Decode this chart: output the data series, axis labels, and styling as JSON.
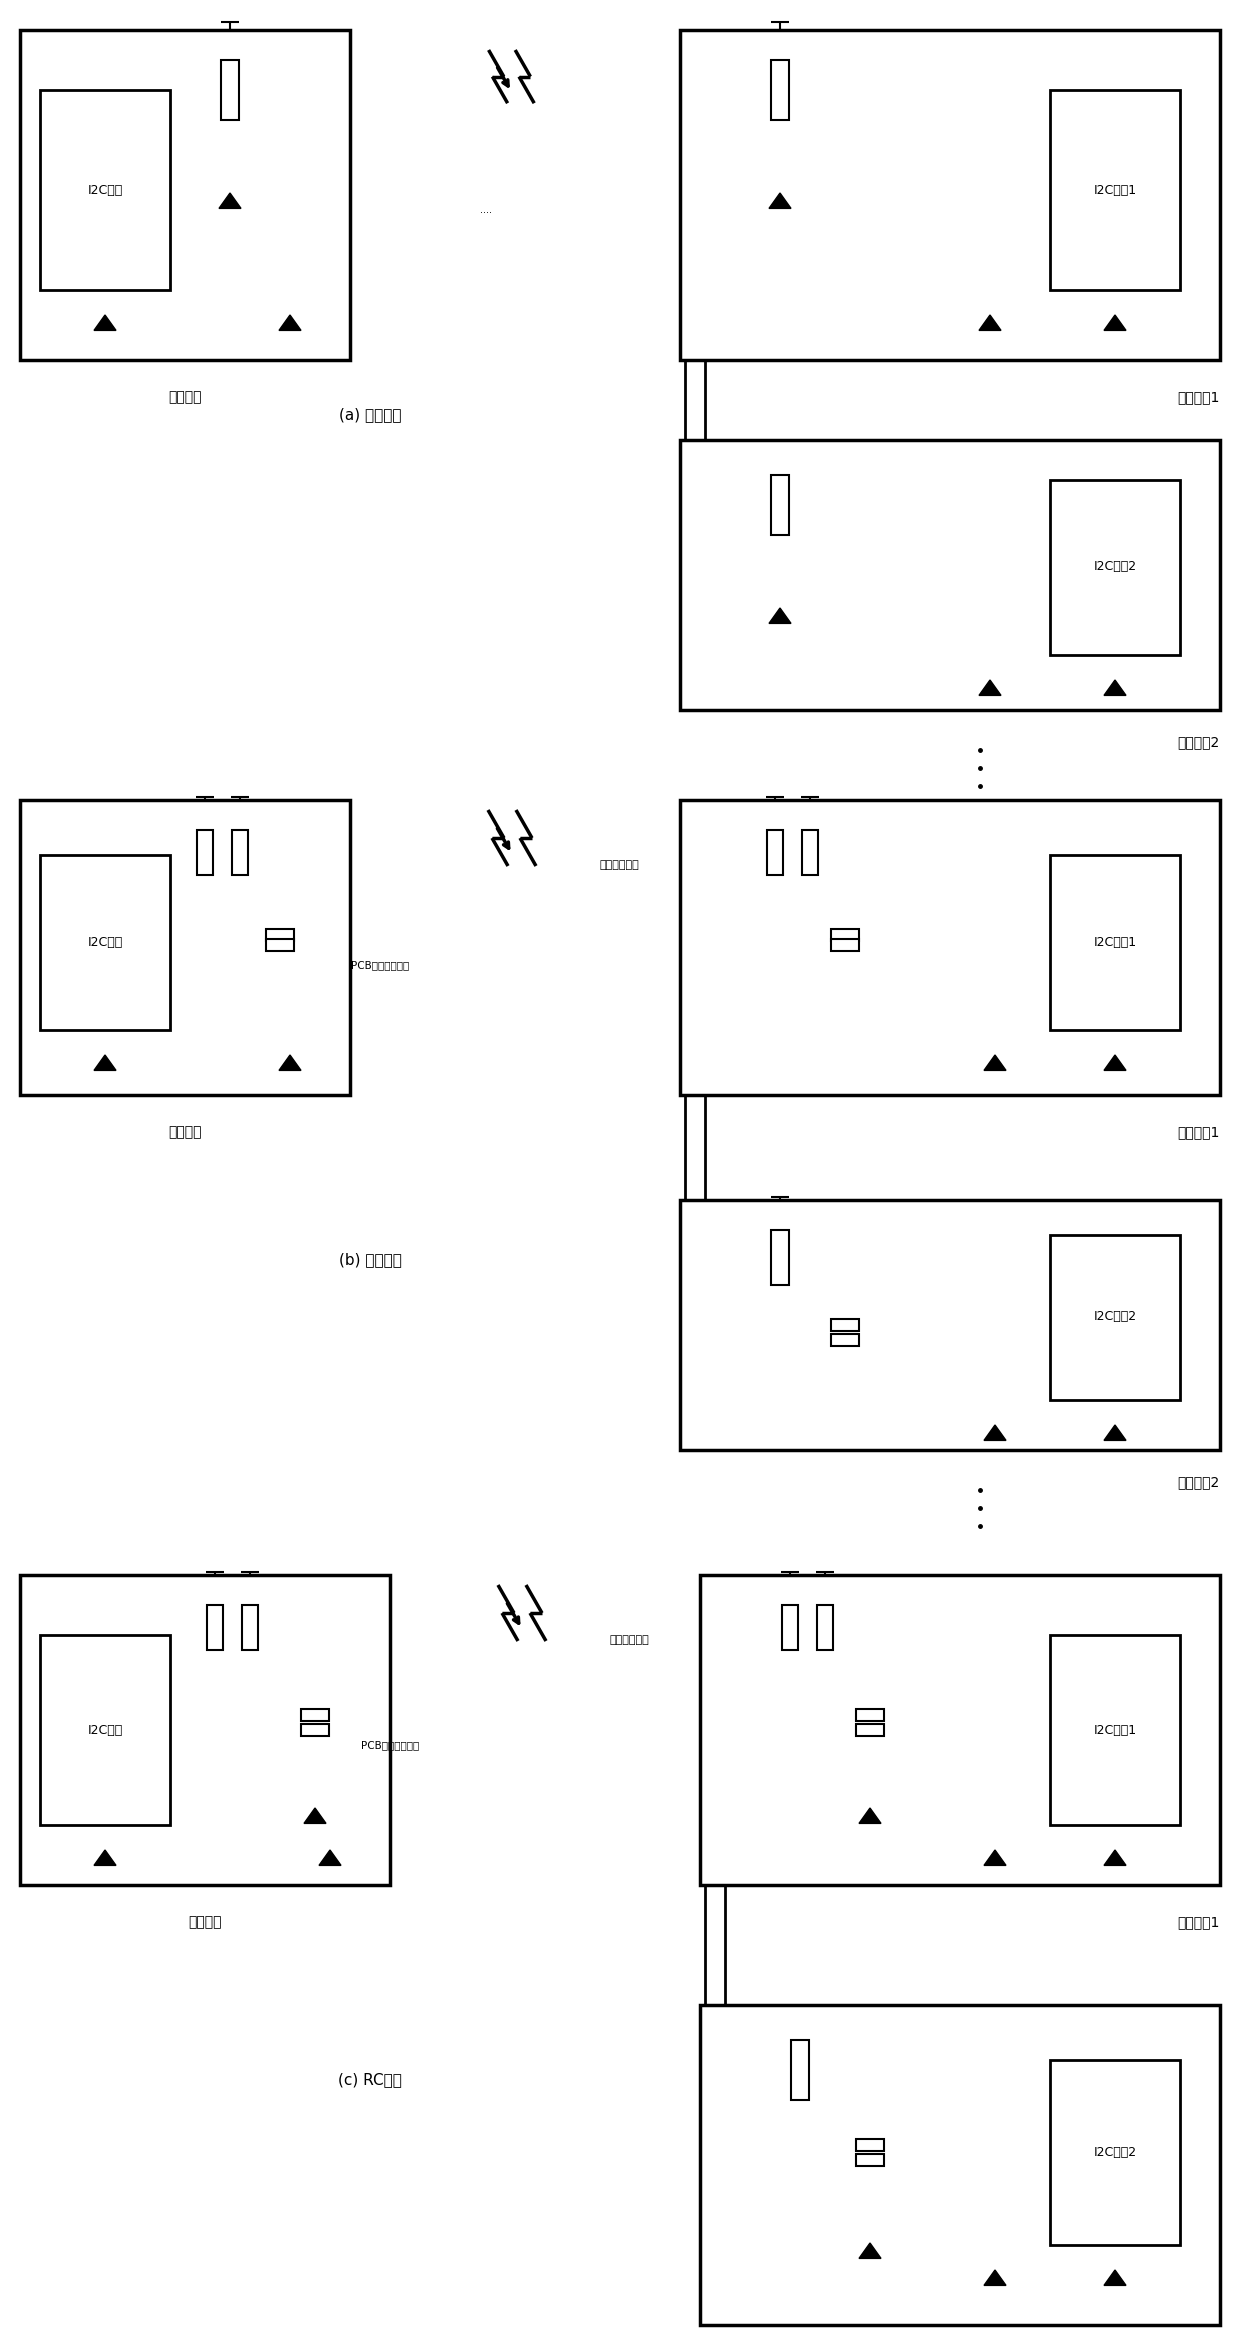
{
  "bg_color": "#ffffff",
  "section_labels": [
    "(a) 电容滤波",
    "(b) 电阵滤波",
    "(c) RC滤波"
  ],
  "master_label": "主机设备",
  "slave1_label": "从机设备1",
  "slave2_label": "从机设备2",
  "master_ic_label": "I2C主机",
  "slave1_ic_label": "I2C从机1",
  "slave2_ic_label": "I2C从机2",
  "noise_label": "外界干扰信号",
  "pcb_label": "PCB走线或连接线",
  "fig_width": 12.4,
  "fig_height": 23.39
}
